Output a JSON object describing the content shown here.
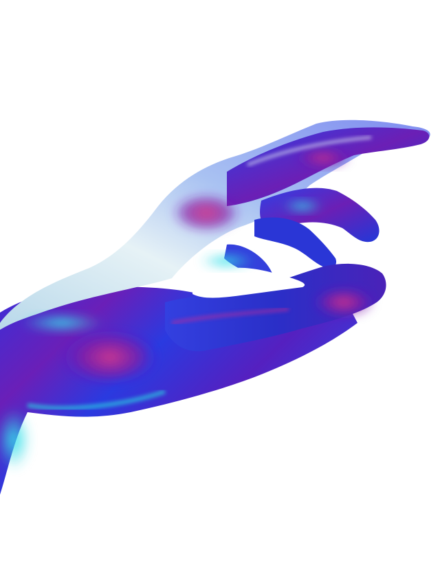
{
  "image": {
    "subject": "hand-illustration",
    "background_color": "#ffffff",
    "palette": {
      "deep_blue": "#1f2fd6",
      "violet": "#5a1fc8",
      "purple": "#7a1aa8",
      "magenta": "#c02a9a",
      "cyan": "#2ad4e0",
      "teal": "#1fb8c8",
      "pale": "#cfe6ee",
      "lavender": "#9aa8f0"
    }
  }
}
